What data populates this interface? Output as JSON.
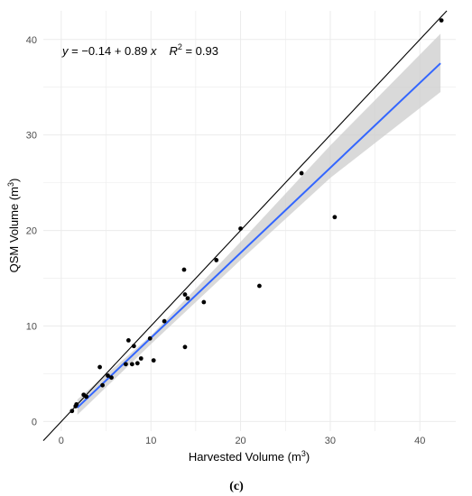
{
  "chart_data": {
    "type": "scatter",
    "equation": {
      "y": "y",
      "equals": " = ",
      "rhs": "−0.14 + 0.89 ",
      "x": "x",
      "r": "R",
      "r_exp": "2",
      "r_rhs": " = 0.93"
    },
    "xlabel": {
      "main": "Harvested Volume (m",
      "exp": "3",
      "close": ")"
    },
    "ylabel": {
      "main": "QSM Volume (m",
      "exp": "3",
      "close": ")"
    },
    "panel_label": "(c)",
    "xlim": [
      -2,
      44
    ],
    "ylim": [
      -1,
      43
    ],
    "x_ticks": [
      0,
      10,
      20,
      30,
      40
    ],
    "y_ticks": [
      0,
      10,
      20,
      30,
      40
    ],
    "x_tick_labels": [
      "0",
      "10",
      "20",
      "30",
      "40"
    ],
    "y_tick_labels": [
      "0",
      "10",
      "20",
      "30",
      "40"
    ],
    "grid": true,
    "identity_line": {
      "from": [
        -2,
        -2
      ],
      "to": [
        43,
        43
      ],
      "color": "#000000"
    },
    "fit": {
      "intercept": -0.14,
      "slope": 0.89,
      "x_range": [
        1.8,
        42.3
      ],
      "color": "#3366ff"
    },
    "confidence_band": {
      "x": [
        1.8,
        10,
        20,
        30,
        42.3
      ],
      "lower": [
        0.7,
        8.1,
        16.9,
        25.5,
        34.5
      ],
      "upper": [
        2.3,
        9.0,
        18.8,
        28.9,
        40.6
      ],
      "color": "#cccccc"
    },
    "points": [
      {
        "x": 1.2,
        "y": 1.1
      },
      {
        "x": 1.6,
        "y": 1.6
      },
      {
        "x": 1.7,
        "y": 1.8
      },
      {
        "x": 2.5,
        "y": 2.8
      },
      {
        "x": 2.8,
        "y": 2.6
      },
      {
        "x": 4.3,
        "y": 5.7
      },
      {
        "x": 4.6,
        "y": 3.8
      },
      {
        "x": 5.2,
        "y": 4.8
      },
      {
        "x": 5.6,
        "y": 4.6
      },
      {
        "x": 7.2,
        "y": 6.0
      },
      {
        "x": 7.5,
        "y": 8.5
      },
      {
        "x": 7.9,
        "y": 6.0
      },
      {
        "x": 8.1,
        "y": 7.9
      },
      {
        "x": 8.5,
        "y": 6.1
      },
      {
        "x": 8.9,
        "y": 6.6
      },
      {
        "x": 9.9,
        "y": 8.7
      },
      {
        "x": 10.3,
        "y": 6.4
      },
      {
        "x": 11.5,
        "y": 10.5
      },
      {
        "x": 13.7,
        "y": 15.9
      },
      {
        "x": 13.8,
        "y": 13.3
      },
      {
        "x": 13.8,
        "y": 7.8
      },
      {
        "x": 14.1,
        "y": 12.9
      },
      {
        "x": 15.9,
        "y": 12.5
      },
      {
        "x": 17.3,
        "y": 16.9
      },
      {
        "x": 20.0,
        "y": 20.2
      },
      {
        "x": 22.1,
        "y": 14.2
      },
      {
        "x": 26.8,
        "y": 26.0
      },
      {
        "x": 30.5,
        "y": 21.4
      },
      {
        "x": 42.4,
        "y": 42.0
      }
    ],
    "colors": {
      "points": "#000000",
      "grid": "#ebebeb"
    }
  }
}
